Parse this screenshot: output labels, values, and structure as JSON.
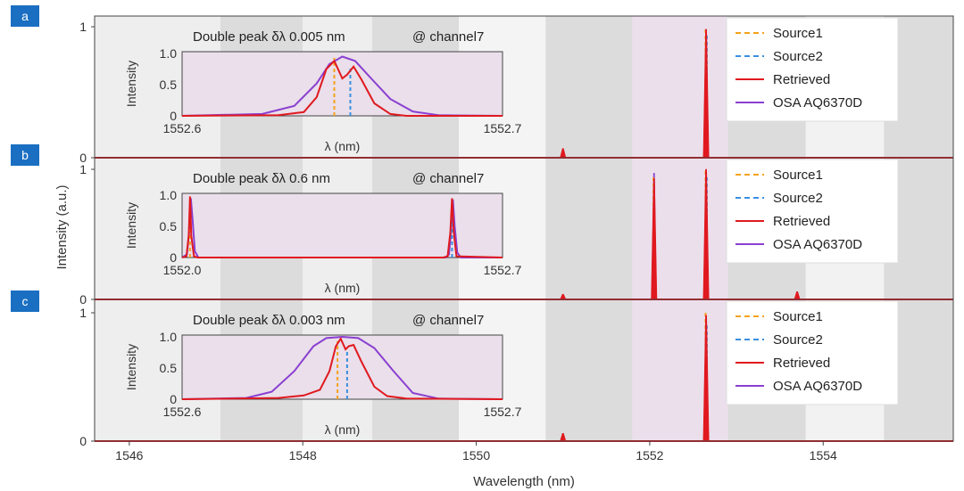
{
  "figure": {
    "xlabel": "Wavelength (nm)",
    "ylabel": "Intensity (a.u.)",
    "xlim": [
      1545.6,
      1555.5
    ],
    "xticks": [
      "1546",
      "1548",
      "1550",
      "1552",
      "1554"
    ],
    "xtick_values": [
      1546,
      1548,
      1550,
      1552,
      1554
    ],
    "grid_bands": true
  },
  "legend_entries": [
    "Source1",
    "Source2",
    "Retrieved",
    "OSA  AQ6370D"
  ],
  "colors": {
    "source1": "#f4a21c",
    "source2": "#3a8fe0",
    "retrieved": "#e0191f",
    "osa": "#8a3fd1",
    "panel_badge": "#1b6fc2",
    "band_light": "#eeeeee",
    "band_dark": "#dcdcdc",
    "highlight": "#ecdfec"
  },
  "chart_data": [
    {
      "panel": "a",
      "type": "line",
      "xlim": [
        1545.6,
        1555.5
      ],
      "ylim": [
        0,
        1
      ],
      "ytick_labels": [
        "0",
        "1"
      ],
      "series": [
        {
          "name": "Source1",
          "style": "dashed",
          "peaks": [
            {
              "x": 1552.65,
              "y": 1.0
            }
          ]
        },
        {
          "name": "Source2",
          "style": "dashed",
          "peaks": [
            {
              "x": 1552.65,
              "y": 0.95
            }
          ]
        },
        {
          "name": "Retrieved",
          "style": "solid",
          "peaks": [
            {
              "x": 1551.0,
              "y": 0.07
            },
            {
              "x": 1552.65,
              "y": 0.98
            }
          ]
        },
        {
          "name": "OSA  AQ6370D",
          "style": "solid",
          "peaks": [
            {
              "x": 1552.65,
              "y": 0.96
            }
          ]
        }
      ],
      "inset": {
        "title": "Double peak δλ 0.005 nm",
        "channel": "@ channel7",
        "xlabel": "λ (nm)",
        "ylabel": "Intensity",
        "xtick_labels": [
          "1552.6",
          "1552.7"
        ],
        "ytick_labels": [
          "0",
          "0.5",
          "1.0"
        ],
        "xlim": [
          1552.6,
          1552.7
        ],
        "ylim": [
          0,
          1
        ],
        "source1_x": 1552.6475,
        "source1_y": 0.93,
        "source2_x": 1552.6525,
        "source2_y": 0.78,
        "retrieved": [
          [
            1552.6,
            0
          ],
          [
            1552.63,
            0.01
          ],
          [
            1552.638,
            0.06
          ],
          [
            1552.642,
            0.3
          ],
          [
            1552.645,
            0.75
          ],
          [
            1552.6475,
            0.88
          ],
          [
            1552.65,
            0.6
          ],
          [
            1552.6515,
            0.66
          ],
          [
            1552.6535,
            0.79
          ],
          [
            1552.656,
            0.58
          ],
          [
            1552.66,
            0.2
          ],
          [
            1552.665,
            0.03
          ],
          [
            1552.67,
            0
          ],
          [
            1552.7,
            0
          ]
        ],
        "osa": [
          [
            1552.6,
            0
          ],
          [
            1552.625,
            0.03
          ],
          [
            1552.635,
            0.16
          ],
          [
            1552.642,
            0.52
          ],
          [
            1552.646,
            0.83
          ],
          [
            1552.65,
            0.95
          ],
          [
            1552.654,
            0.88
          ],
          [
            1552.659,
            0.6
          ],
          [
            1552.665,
            0.27
          ],
          [
            1552.672,
            0.07
          ],
          [
            1552.68,
            0.01
          ],
          [
            1552.7,
            0
          ]
        ]
      }
    },
    {
      "panel": "b",
      "type": "line",
      "xlim": [
        1545.6,
        1555.5
      ],
      "ylim": [
        0,
        1
      ],
      "ytick_labels": [
        "0",
        "1"
      ],
      "series": [
        {
          "name": "Source1",
          "style": "dashed",
          "peaks": [
            {
              "x": 1552.05,
              "y": 0.95
            },
            {
              "x": 1552.65,
              "y": 1.0
            }
          ]
        },
        {
          "name": "Source2",
          "style": "dashed",
          "peaks": [
            {
              "x": 1552.65,
              "y": 0.95
            }
          ]
        },
        {
          "name": "Retrieved",
          "style": "solid",
          "peaks": [
            {
              "x": 1551.0,
              "y": 0.04
            },
            {
              "x": 1552.05,
              "y": 0.93
            },
            {
              "x": 1552.65,
              "y": 1.0
            },
            {
              "x": 1553.7,
              "y": 0.06
            }
          ]
        },
        {
          "name": "OSA  AQ6370D",
          "style": "solid",
          "peaks": [
            {
              "x": 1552.05,
              "y": 0.97
            },
            {
              "x": 1552.65,
              "y": 0.96
            }
          ]
        }
      ],
      "inset": {
        "title": "Double peak δλ 0.6 nm",
        "channel": "@ channel7",
        "xlabel": "λ (nm)",
        "ylabel": "Intensity",
        "xtick_labels": [
          "1552.0",
          "1552.7"
        ],
        "ytick_labels": [
          "0",
          "0.5",
          "1.0"
        ],
        "xlim": [
          1551.985,
          1552.715
        ],
        "ylim": [
          0,
          1
        ],
        "source1_x": 1552.003,
        "source1_y": 0.95,
        "source2_x": 1552.6,
        "source2_y": 0.9,
        "retrieved": [
          [
            1551.985,
            0
          ],
          [
            1551.995,
            0.02
          ],
          [
            1552.0,
            0.35
          ],
          [
            1552.003,
            0.98
          ],
          [
            1552.006,
            0.35
          ],
          [
            1552.012,
            0.02
          ],
          [
            1552.02,
            0
          ],
          [
            1552.58,
            0
          ],
          [
            1552.59,
            0.02
          ],
          [
            1552.596,
            0.4
          ],
          [
            1552.6,
            0.95
          ],
          [
            1552.604,
            0.4
          ],
          [
            1552.61,
            0.02
          ],
          [
            1552.715,
            0
          ]
        ],
        "osa": [
          [
            1551.985,
            0
          ],
          [
            1551.996,
            0.05
          ],
          [
            1552.001,
            0.4
          ],
          [
            1552.005,
            0.95
          ],
          [
            1552.009,
            0.6
          ],
          [
            1552.014,
            0.1
          ],
          [
            1552.022,
            0
          ],
          [
            1552.585,
            0
          ],
          [
            1552.593,
            0.05
          ],
          [
            1552.598,
            0.45
          ],
          [
            1552.602,
            0.93
          ],
          [
            1552.606,
            0.5
          ],
          [
            1552.612,
            0.08
          ],
          [
            1552.62,
            0
          ],
          [
            1552.715,
            0
          ]
        ]
      }
    },
    {
      "panel": "c",
      "type": "line",
      "xlim": [
        1545.6,
        1555.5
      ],
      "ylim": [
        0,
        1
      ],
      "ytick_labels": [
        "0",
        "1"
      ],
      "series": [
        {
          "name": "Source1",
          "style": "dashed",
          "peaks": [
            {
              "x": 1552.65,
              "y": 1.0
            }
          ]
        },
        {
          "name": "Source2",
          "style": "dashed",
          "peaks": [
            {
              "x": 1552.65,
              "y": 0.9
            }
          ]
        },
        {
          "name": "Retrieved",
          "style": "solid",
          "peaks": [
            {
              "x": 1551.0,
              "y": 0.06
            },
            {
              "x": 1552.65,
              "y": 0.98
            }
          ]
        },
        {
          "name": "OSA  AQ6370D",
          "style": "solid",
          "peaks": [
            {
              "x": 1552.65,
              "y": 0.95
            }
          ]
        }
      ],
      "inset": {
        "title": "Double peak δλ 0.003 nm",
        "channel": "@ channel7",
        "xlabel": "λ (nm)",
        "ylabel": "Intensity",
        "xtick_labels": [
          "1552.6",
          "1552.7"
        ],
        "ytick_labels": [
          "0",
          "0.5",
          "1.0"
        ],
        "xlim": [
          1552.6,
          1552.7
        ],
        "ylim": [
          0,
          1
        ],
        "source1_x": 1552.6485,
        "source1_y": 0.93,
        "source2_x": 1552.6515,
        "source2_y": 0.78,
        "retrieved": [
          [
            1552.6,
            0
          ],
          [
            1552.63,
            0.02
          ],
          [
            1552.638,
            0.06
          ],
          [
            1552.643,
            0.15
          ],
          [
            1552.646,
            0.45
          ],
          [
            1552.648,
            0.85
          ],
          [
            1552.6495,
            0.97
          ],
          [
            1552.651,
            0.8
          ],
          [
            1552.652,
            0.85
          ],
          [
            1552.6535,
            0.87
          ],
          [
            1552.656,
            0.6
          ],
          [
            1552.66,
            0.2
          ],
          [
            1552.664,
            0.05
          ],
          [
            1552.67,
            0.01
          ],
          [
            1552.7,
            0
          ]
        ],
        "osa": [
          [
            1552.6,
            0
          ],
          [
            1552.62,
            0.02
          ],
          [
            1552.628,
            0.12
          ],
          [
            1552.635,
            0.45
          ],
          [
            1552.641,
            0.85
          ],
          [
            1552.645,
            0.98
          ],
          [
            1552.65,
            1.0
          ],
          [
            1552.655,
            0.98
          ],
          [
            1552.66,
            0.82
          ],
          [
            1552.666,
            0.45
          ],
          [
            1552.672,
            0.1
          ],
          [
            1552.68,
            0.01
          ],
          [
            1552.7,
            0
          ]
        ]
      }
    }
  ]
}
